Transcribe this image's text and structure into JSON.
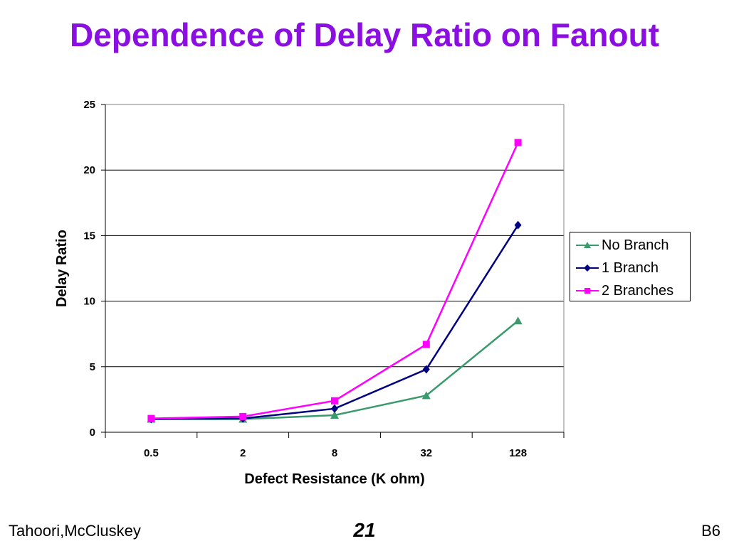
{
  "slide": {
    "title": "Dependence of Delay Ratio on Fanout",
    "footer_left": "Tahoori,McCluskey",
    "footer_center": "21",
    "footer_right": "B6"
  },
  "chart_data": {
    "type": "line",
    "title": "",
    "xlabel": "Defect Resistance (K ohm)",
    "ylabel": "Delay Ratio",
    "categories": [
      "0.5",
      "2",
      "8",
      "32",
      "128"
    ],
    "ylim": [
      0,
      25
    ],
    "yticks": [
      0,
      5,
      10,
      15,
      20,
      25
    ],
    "grid": "horizontal",
    "legend_position": "right",
    "series": [
      {
        "name": "No Branch",
        "values": [
          1.0,
          1.0,
          1.3,
          2.8,
          8.5
        ],
        "color": "#3a9a6e",
        "marker": "triangle"
      },
      {
        "name": "1 Branch",
        "values": [
          1.0,
          1.05,
          1.8,
          4.8,
          15.8
        ],
        "color": "#000080",
        "marker": "diamond"
      },
      {
        "name": "2 Branches",
        "values": [
          1.05,
          1.2,
          2.4,
          6.7,
          22.1
        ],
        "color": "#ff00ff",
        "marker": "square"
      }
    ]
  }
}
